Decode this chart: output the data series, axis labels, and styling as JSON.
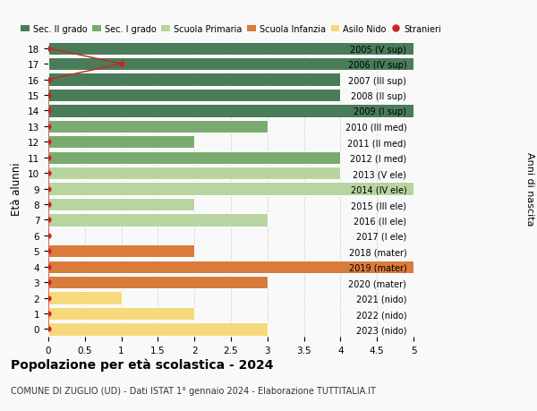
{
  "ages": [
    18,
    17,
    16,
    15,
    14,
    13,
    12,
    11,
    10,
    9,
    8,
    7,
    6,
    5,
    4,
    3,
    2,
    1,
    0
  ],
  "right_labels": [
    "2005 (V sup)",
    "2006 (IV sup)",
    "2007 (III sup)",
    "2008 (II sup)",
    "2009 (I sup)",
    "2010 (III med)",
    "2011 (II med)",
    "2012 (I med)",
    "2013 (V ele)",
    "2014 (IV ele)",
    "2015 (III ele)",
    "2016 (II ele)",
    "2017 (I ele)",
    "2018 (mater)",
    "2019 (mater)",
    "2020 (mater)",
    "2021 (nido)",
    "2022 (nido)",
    "2023 (nido)"
  ],
  "bar_values": [
    5.0,
    5.0,
    4.0,
    4.0,
    5.0,
    3.0,
    2.0,
    4.0,
    4.0,
    5.0,
    2.0,
    3.0,
    0.0,
    2.0,
    5.0,
    3.0,
    1.0,
    2.0,
    3.0
  ],
  "bar_colors": [
    "#4a7c59",
    "#4a7c59",
    "#4a7c59",
    "#4a7c59",
    "#4a7c59",
    "#7aab6e",
    "#7aab6e",
    "#7aab6e",
    "#b8d4a0",
    "#b8d4a0",
    "#b8d4a0",
    "#b8d4a0",
    "#b8d4a0",
    "#d97b3a",
    "#d97b3a",
    "#d97b3a",
    "#f5d97a",
    "#f5d97a",
    "#f5d97a"
  ],
  "stranieri_values": [
    0.0,
    1.0,
    0.0,
    0.0,
    0.0,
    0.0,
    0.0,
    0.0,
    0.0,
    0.0,
    0.0,
    0.0,
    0.0,
    0.0,
    0.0,
    0.0,
    0.0,
    0.0,
    0.0
  ],
  "stranieri_color": "#cc2222",
  "legend_labels": [
    "Sec. II grado",
    "Sec. I grado",
    "Scuola Primaria",
    "Scuola Infanzia",
    "Asilo Nido",
    "Stranieri"
  ],
  "legend_colors": [
    "#4a7c59",
    "#7aab6e",
    "#b8d4a0",
    "#d97b3a",
    "#f5d97a",
    "#cc2222"
  ],
  "ylabel": "Età alunni",
  "right_ylabel": "Anni di nascita",
  "xlim": [
    0,
    5.0
  ],
  "xticks": [
    0,
    0.5,
    1.0,
    1.5,
    2.0,
    2.5,
    3.0,
    3.5,
    4.0,
    4.5,
    5.0
  ],
  "title": "Popolazione per età scolastica - 2024",
  "subtitle": "COMUNE DI ZUGLIO (UD) - Dati ISTAT 1° gennaio 2024 - Elaborazione TUTTITALIA.IT",
  "background_color": "#f9f9f9",
  "bar_height": 0.82,
  "grid_color": "#cccccc"
}
